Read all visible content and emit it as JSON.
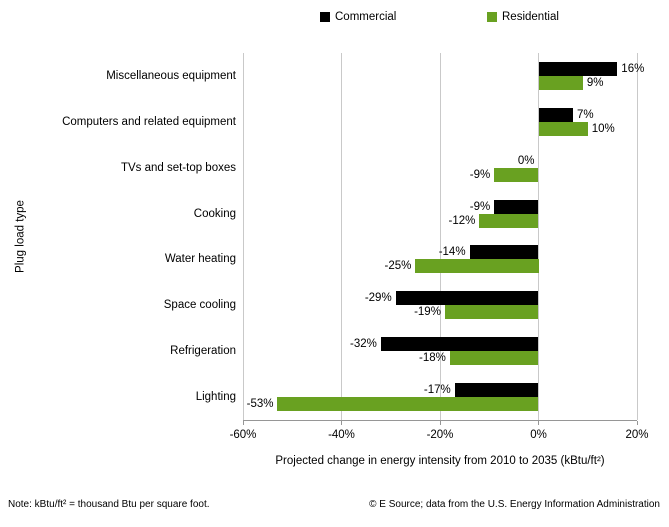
{
  "notes": {
    "left": "Note: kBtu/ft² = thousand Btu per square foot.",
    "right": "© E Source; data from the U.S. Energy Information Administration"
  },
  "chart_data": {
    "type": "bar",
    "orientation": "horizontal",
    "title": "",
    "categories": [
      "Miscellaneous equipment",
      "Computers and related equipment",
      "TVs and set-top boxes",
      "Cooking",
      "Water heating",
      "Space cooling",
      "Refrigeration",
      "Lighting"
    ],
    "series": [
      {
        "name": "Commercial",
        "color": "#000000",
        "values": [
          16,
          7,
          0,
          -9,
          -14,
          -29,
          -32,
          -17
        ]
      },
      {
        "name": "Residential",
        "color": "#69A121",
        "values": [
          9,
          10,
          -9,
          -12,
          -25,
          -19,
          -18,
          -53
        ]
      }
    ],
    "data_labels": [
      [
        "16%",
        "7%",
        "0%",
        "-9%",
        "-14%",
        "-29%",
        "-32%",
        "-17%"
      ],
      [
        "9%",
        "10%",
        "-9%",
        "-12%",
        "-25%",
        "-19%",
        "-18%",
        "-53%"
      ]
    ],
    "xlabel": "Projected change in energy intensity from 2010 to 2035 (kBtu/ft²)",
    "ylabel": "Plug load type",
    "xlim": [
      -60,
      20
    ],
    "x_ticks": [
      {
        "value": -60,
        "label": "-60%"
      },
      {
        "value": -40,
        "label": "-40%"
      },
      {
        "value": -20,
        "label": "-20%"
      },
      {
        "value": 0,
        "label": "0%"
      },
      {
        "value": 20,
        "label": "20%"
      }
    ],
    "grid": true,
    "legend_position": "top"
  }
}
